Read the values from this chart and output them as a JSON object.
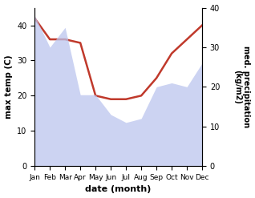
{
  "months": [
    "Jan",
    "Feb",
    "Mar",
    "Apr",
    "May",
    "Jun",
    "Jul",
    "Aug",
    "Sep",
    "Oct",
    "Nov",
    "Dec"
  ],
  "temperature": [
    42,
    36,
    36,
    35,
    20,
    19,
    19,
    20,
    25,
    32,
    36,
    40
  ],
  "precipitation": [
    38,
    30,
    35,
    18,
    18,
    13,
    11,
    12,
    20,
    21,
    20,
    26
  ],
  "temp_color": "#c0392b",
  "precip_fill_color": "#bbc5ee",
  "ylabel_left": "max temp (C)",
  "ylabel_right": "med. precipitation\n(kg/m2)",
  "xlabel": "date (month)",
  "ylim_left": [
    0,
    45
  ],
  "ylim_right": [
    0,
    40
  ],
  "yticks_left": [
    0,
    10,
    20,
    30,
    40
  ],
  "yticks_right": [
    0,
    10,
    20,
    30,
    40
  ],
  "background_color": "#ffffff",
  "temp_linewidth": 1.8
}
